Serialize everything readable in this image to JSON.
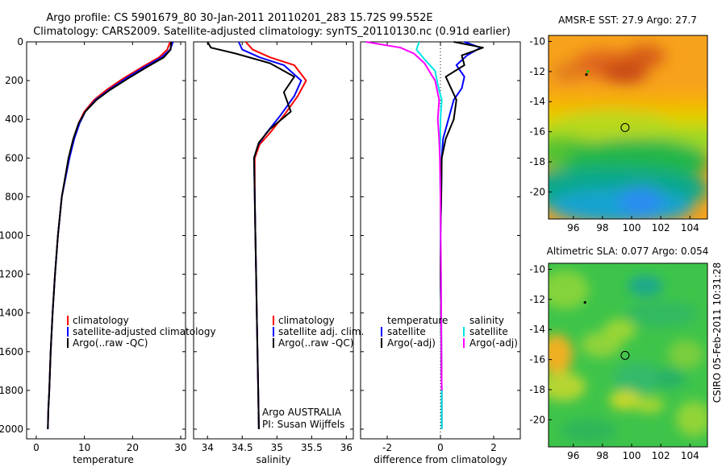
{
  "title_line1": "Argo profile: CS 5901679_80 30-Jan-2011 20110201_283 15.72S 99.552E",
  "title_line2": "Climatology: CARS2009. Satellite-adjusted climatology: synTS_20110130.nc (0.91d earlier)",
  "side_label": "CSIRO 05-Feb-2011 10:31:28",
  "colors": {
    "red": "#ff0000",
    "blue": "#0000ff",
    "black": "#000000",
    "cyan": "#00e5e5",
    "magenta": "#ff00ff"
  },
  "chart_data": [
    {
      "type": "line",
      "id": "temperature",
      "xlabel": "temperature",
      "xlim": [
        -2,
        31
      ],
      "ylim": [
        0,
        2050
      ],
      "y_inverted": true,
      "xticks": [
        0,
        10,
        20,
        30
      ],
      "yticks": [
        0,
        200,
        400,
        600,
        800,
        1000,
        1200,
        1400,
        1600,
        1800,
        2000
      ],
      "legend": [
        "climatology",
        "satellite-adjusted climatology",
        "Argo(..raw -QC)"
      ],
      "legend_colors": [
        "red",
        "blue",
        "black"
      ],
      "series": [
        {
          "name": "climatology",
          "color": "red",
          "x": [
            27.8,
            27.2,
            25.5,
            22,
            18,
            14.5,
            12,
            10,
            8.8,
            7.8,
            6.8,
            5.3,
            4.5,
            3.9,
            3.4,
            3.0,
            2.7,
            2.5,
            2.4
          ],
          "y": [
            0,
            40,
            80,
            130,
            190,
            250,
            300,
            360,
            420,
            500,
            600,
            800,
            1000,
            1200,
            1400,
            1600,
            1800,
            1900,
            2000
          ]
        },
        {
          "name": "satellite-adjusted climatology",
          "color": "blue",
          "x": [
            28.4,
            27.8,
            26,
            22.5,
            18.5,
            15,
            12.3,
            10.2,
            9,
            7.9,
            6.9,
            5.3,
            4.5,
            3.9,
            3.4,
            3.0,
            2.7,
            2.5,
            2.4
          ],
          "y": [
            0,
            40,
            80,
            130,
            190,
            250,
            300,
            360,
            420,
            500,
            600,
            800,
            1000,
            1200,
            1400,
            1600,
            1800,
            1900,
            2000
          ]
        },
        {
          "name": "Argo(..raw -QC)",
          "color": "black",
          "x": [
            28.0,
            27.9,
            26.5,
            23,
            19,
            15.2,
            12.5,
            10.2,
            8.8,
            7.7,
            6.7,
            5.3,
            4.5,
            3.9,
            3.4,
            3.0,
            2.7,
            2.5,
            2.4
          ],
          "y": [
            0,
            40,
            80,
            130,
            190,
            250,
            300,
            360,
            420,
            500,
            600,
            800,
            1000,
            1200,
            1400,
            1600,
            1800,
            1900,
            2000
          ]
        }
      ]
    },
    {
      "type": "line",
      "id": "salinity",
      "xlabel": "salinity",
      "xlim": [
        33.8,
        36.1
      ],
      "ylim": [
        0,
        2050
      ],
      "y_inverted": true,
      "xticks": [
        34,
        34.5,
        35,
        35.5,
        36
      ],
      "legend": [
        "climatology",
        "satellite adj. clim.",
        "Argo(..raw -QC)"
      ],
      "legend_colors": [
        "red",
        "blue",
        "black"
      ],
      "annotation_line1": "Argo AUSTRALIA",
      "annotation_line2": "PI: Susan Wijffels",
      "series": [
        {
          "name": "climatology",
          "color": "red",
          "x": [
            34.55,
            34.65,
            34.9,
            35.25,
            35.42,
            35.3,
            35.1,
            34.9,
            34.75,
            34.68,
            34.68,
            34.69,
            34.7,
            34.71,
            34.72,
            34.73,
            34.74
          ],
          "y": [
            0,
            40,
            80,
            120,
            200,
            280,
            380,
            470,
            530,
            600,
            800,
            1000,
            1200,
            1400,
            1600,
            1800,
            2000
          ]
        },
        {
          "name": "satellite adj. clim.",
          "color": "blue",
          "x": [
            34.45,
            34.5,
            34.75,
            35.1,
            35.35,
            35.25,
            35.05,
            34.85,
            34.73,
            34.67,
            34.68,
            34.69,
            34.7,
            34.71,
            34.72,
            34.73,
            34.74
          ],
          "y": [
            0,
            40,
            80,
            120,
            200,
            280,
            380,
            470,
            530,
            600,
            800,
            1000,
            1200,
            1400,
            1600,
            1800,
            2000
          ]
        },
        {
          "name": "Argo(..raw -QC)",
          "color": "black",
          "x": [
            34.0,
            34.05,
            34.4,
            34.9,
            35.25,
            35.1,
            35.2,
            34.9,
            34.74,
            34.67,
            34.68,
            34.69,
            34.7,
            34.71,
            34.72,
            34.73,
            34.74
          ],
          "y": [
            0,
            30,
            60,
            110,
            180,
            260,
            360,
            450,
            520,
            600,
            800,
            1000,
            1200,
            1400,
            1600,
            1800,
            2000
          ]
        }
      ]
    },
    {
      "type": "line",
      "id": "difference",
      "xlabel": "difference from climatology",
      "xlim": [
        -3,
        3.0
      ],
      "ylim": [
        0,
        2050
      ],
      "y_inverted": true,
      "xticks": [
        -2,
        0,
        2
      ],
      "legend_left_title": "temperature",
      "legend_right_title": "salinity",
      "legend_left": [
        "satellite",
        "Argo(-adj)"
      ],
      "legend_left_colors": [
        "blue",
        "black"
      ],
      "legend_right": [
        "satellite",
        "Argo(-adj)"
      ],
      "legend_right_colors": [
        "cyan",
        "magenta"
      ],
      "series": [
        {
          "name": "temperature satellite",
          "color": "blue",
          "x": [
            0.9,
            1.5,
            1.0,
            0.6,
            0.9,
            0.8,
            0.5,
            0.3,
            0.1,
            0.05,
            0.03,
            0.0,
            0.0,
            0.02,
            0.03,
            0.05,
            0.05
          ],
          "y": [
            0,
            30,
            70,
            120,
            180,
            240,
            300,
            400,
            500,
            600,
            800,
            1000,
            1200,
            1400,
            1600,
            1800,
            2000
          ]
        },
        {
          "name": "temperature Argo(-adj)",
          "color": "black",
          "x": [
            0.5,
            1.6,
            0.8,
            0.9,
            0.2,
            0.4,
            0.6,
            0.5,
            0.2,
            0.05,
            0.03,
            0.0,
            0.0,
            0.02,
            0.03,
            0.05,
            0.05
          ],
          "y": [
            0,
            30,
            70,
            120,
            180,
            240,
            300,
            400,
            500,
            600,
            800,
            1000,
            1200,
            1400,
            1600,
            1800,
            2000
          ]
        },
        {
          "name": "salinity satellite",
          "color": "cyan",
          "x": [
            -0.8,
            -0.9,
            -0.6,
            -0.2,
            -0.1,
            0.05,
            0.0,
            0.0,
            -0.02,
            0.0,
            0.0,
            0.02,
            0.03,
            0.04,
            0.05,
            0.05
          ],
          "y": [
            0,
            40,
            90,
            150,
            220,
            300,
            400,
            500,
            600,
            800,
            1000,
            1200,
            1400,
            1600,
            1800,
            2000
          ]
        },
        {
          "name": "salinity Argo(-adj)",
          "color": "magenta",
          "x": [
            -2.8,
            -1.5,
            -1.0,
            -0.6,
            -0.2,
            -0.05,
            -0.1,
            -0.05,
            -0.02,
            0.0,
            0.01,
            0.02,
            0.03,
            0.04,
            0.05
          ],
          "y": [
            0,
            30,
            60,
            110,
            200,
            300,
            400,
            500,
            600,
            800,
            1000,
            1200,
            1400,
            1600,
            1800
          ]
        }
      ]
    },
    {
      "type": "heatmap",
      "id": "sst_map",
      "title": "AMSR-E SST: 27.9 Argo: 27.7",
      "xlim": [
        94.3,
        105.2
      ],
      "ylim": [
        -21.8,
        -9.6
      ],
      "xticks": [
        96,
        98,
        100,
        102,
        104
      ],
      "yticks": [
        -10,
        -12,
        -14,
        -16,
        -18,
        -20
      ],
      "float_position": [
        99.55,
        -15.72
      ],
      "track_points": [
        [
          96.9,
          -12.2
        ],
        [
          97.0,
          -12.0
        ]
      ]
    },
    {
      "type": "heatmap",
      "id": "sla_map",
      "title": "Altimetric SLA: 0.077 Argo: 0.054",
      "xlim": [
        94.3,
        105.2
      ],
      "ylim": [
        -21.8,
        -9.6
      ],
      "xticks": [
        96,
        98,
        100,
        102,
        104
      ],
      "yticks": [
        -10,
        -12,
        -14,
        -16,
        -18,
        -20
      ],
      "float_position": [
        99.55,
        -15.72
      ],
      "track_points": [
        [
          96.8,
          -12.2
        ]
      ]
    }
  ]
}
